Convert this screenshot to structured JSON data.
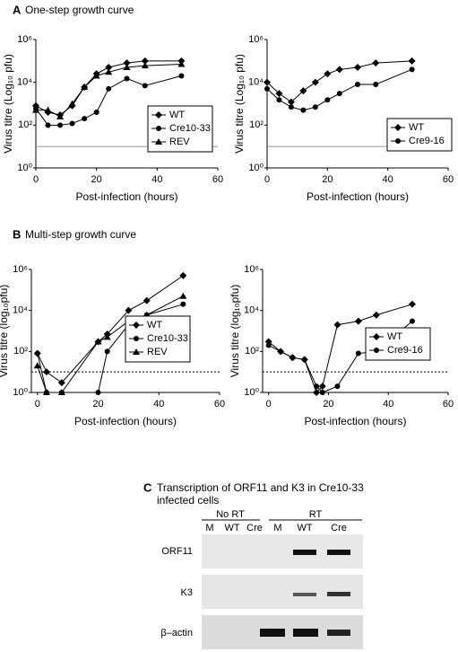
{
  "panels": [
    {
      "letter": "A",
      "title": "One-step growth curve"
    },
    {
      "letter": "B",
      "title": "Multi-step growth curve"
    },
    {
      "letter": "C",
      "title_lines": [
        "Transcription of ORF11 and K3 in Cre10-33",
        "infected cells"
      ]
    }
  ],
  "chart_data": [
    {
      "type": "line",
      "xlabel": "Post-infection (hours)",
      "ylabel": "Virus titre (Log₁₀ pfu)",
      "log_y": true,
      "x": [
        0,
        4,
        8,
        12,
        16,
        20,
        24,
        30,
        36,
        48
      ],
      "series": [
        {
          "name": "WT",
          "marker": "diamond",
          "color": "#000000",
          "values": [
            800,
            400,
            300,
            800,
            6000,
            25000,
            50000,
            80000,
            100000,
            100000
          ]
        },
        {
          "name": "Cre10-33",
          "marker": "circle",
          "color": "#000000",
          "values": [
            600,
            100,
            100,
            120,
            200,
            400,
            5000,
            15000,
            7000,
            20000
          ]
        },
        {
          "name": "REV",
          "marker": "triangle",
          "color": "#000000",
          "values": [
            500,
            500,
            250,
            1000,
            6000,
            20000,
            30000,
            50000,
            60000,
            70000
          ]
        }
      ],
      "xlim": [
        0,
        60
      ],
      "xticks": [
        0,
        20,
        40,
        60
      ],
      "ylim": [
        1,
        1000000
      ],
      "yticks": [
        {
          "value": 1,
          "label": "10⁰"
        },
        {
          "value": 100,
          "label": "10²"
        },
        {
          "value": 10000,
          "label": "10⁴"
        },
        {
          "value": 1000000,
          "label": "10⁶"
        }
      ],
      "reference_line": 10,
      "legend": "lower right"
    },
    {
      "type": "line",
      "xlabel": "Post-infection (hours)",
      "ylabel": "Virus titre (Log₁₀ pfu)",
      "log_y": true,
      "x": [
        0,
        4,
        8,
        12,
        16,
        20,
        24,
        30,
        36,
        48
      ],
      "series": [
        {
          "name": "WT",
          "marker": "diamond",
          "color": "#000000",
          "values": [
            10000,
            3000,
            1200,
            4000,
            10000,
            25000,
            40000,
            50000,
            80000,
            100000
          ]
        },
        {
          "name": "Cre9-16",
          "marker": "circle",
          "color": "#000000",
          "values": [
            5000,
            1500,
            700,
            500,
            700,
            1500,
            3000,
            8000,
            8000,
            40000
          ]
        }
      ],
      "xlim": [
        0,
        60
      ],
      "xticks": [
        0,
        20,
        40,
        60
      ],
      "ylim": [
        1,
        1000000
      ],
      "yticks": [
        {
          "value": 1,
          "label": "10⁰"
        },
        {
          "value": 100,
          "label": "10²"
        },
        {
          "value": 10000,
          "label": "10⁴"
        },
        {
          "value": 1000000,
          "label": "10⁶"
        }
      ],
      "reference_line": 10,
      "legend": "lower right"
    },
    {
      "type": "line",
      "xlabel": "Post-infection (hours)",
      "ylabel": "Virus titre (log₁₀pfu)",
      "log_y": true,
      "x": [
        0,
        3,
        8,
        20,
        23,
        30,
        36,
        48
      ],
      "series": [
        {
          "name": "WT",
          "marker": "diamond",
          "color": "#000000",
          "values": [
            80,
            10,
            3,
            300,
            700,
            10000,
            30000,
            500000
          ]
        },
        {
          "name": "Cre10-33",
          "marker": "circle",
          "color": "#000000",
          "values": [
            80,
            1,
            1,
            1,
            100,
            2000,
            6000,
            20000
          ]
        },
        {
          "name": "REV",
          "marker": "triangle",
          "color": "#000000",
          "values": [
            20,
            1,
            1,
            300,
            500,
            3000,
            6000,
            50000
          ]
        }
      ],
      "xlim": [
        -2,
        60
      ],
      "xticks": [
        0,
        20,
        40,
        60
      ],
      "ylim": [
        1,
        1000000
      ],
      "yticks": [
        {
          "value": 1,
          "label": "10⁰"
        },
        {
          "value": 100,
          "label": "10²"
        },
        {
          "value": 10000,
          "label": "10⁴"
        },
        {
          "value": 1000000,
          "label": "10⁶"
        }
      ],
      "reference_line": 10,
      "legend": "lower right"
    },
    {
      "type": "line",
      "xlabel": "Post-infection (hours)",
      "ylabel": "Virus titre (log₁₀pfu)",
      "log_y": true,
      "x": [
        0,
        4,
        8,
        12,
        16,
        18,
        23,
        30,
        36,
        48
      ],
      "series": [
        {
          "name": "WT",
          "marker": "diamond",
          "color": "#000000",
          "values": [
            300,
            100,
            50,
            40,
            1,
            2,
            2000,
            3000,
            6000,
            20000
          ]
        },
        {
          "name": "Cre9-16",
          "marker": "circle",
          "color": "#000000",
          "values": [
            200,
            100,
            50,
            40,
            2,
            1,
            2,
            80,
            100,
            3000
          ]
        }
      ],
      "xlim": [
        -2,
        60
      ],
      "xticks": [
        0,
        20,
        40,
        60
      ],
      "ylim": [
        1,
        1000000
      ],
      "yticks": [
        {
          "value": 1,
          "label": "10⁰"
        },
        {
          "value": 100,
          "label": "10²"
        },
        {
          "value": 10000,
          "label": "10⁴"
        },
        {
          "value": 1000000,
          "label": "10⁶"
        }
      ],
      "reference_line": 10,
      "legend": "lower right"
    }
  ],
  "gel": {
    "groups": [
      "No RT",
      "RT"
    ],
    "lanes": [
      "M",
      "WT",
      "Cre",
      "M",
      "WT",
      "Cre"
    ],
    "rows": [
      "ORF11",
      "K3",
      "β–actin"
    ]
  }
}
